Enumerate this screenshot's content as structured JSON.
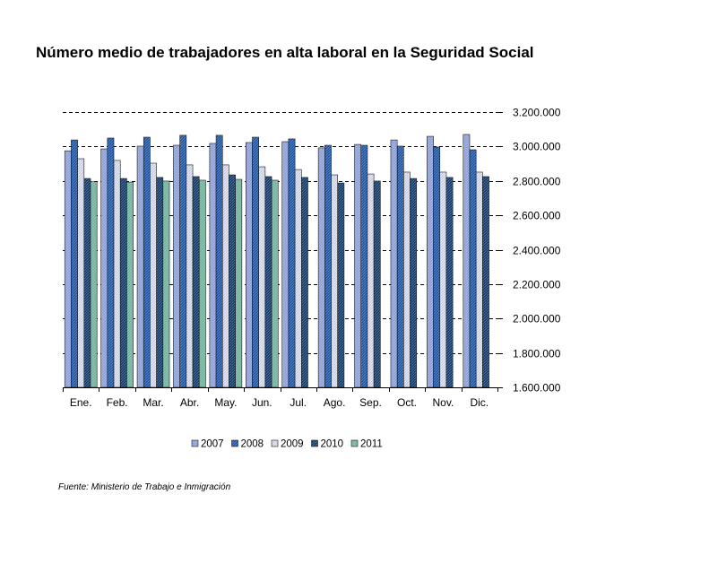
{
  "chart_data": {
    "type": "bar",
    "title": "Número medio de trabajadores en alta laboral en la Seguridad Social",
    "categories": [
      "Ene.",
      "Feb.",
      "Mar.",
      "Abr.",
      "May.",
      "Jun.",
      "Jul.",
      "Ago.",
      "Sep.",
      "Oct.",
      "Nov.",
      "Dic."
    ],
    "series": [
      {
        "name": "2007",
        "color": "#8c9fd6",
        "values": [
          2975000,
          2986000,
          3002000,
          3007000,
          3018000,
          3023000,
          3028000,
          2992000,
          3012000,
          3038000,
          3059000,
          3070000
        ]
      },
      {
        "name": "2008",
        "color": "#1d56a5",
        "values": [
          3038000,
          3049000,
          3054000,
          3065000,
          3065000,
          3054000,
          3044000,
          3007000,
          3007000,
          3002000,
          2997000,
          2981000
        ]
      },
      {
        "name": "2009",
        "color": "#e4e8f3",
        "values": [
          2929000,
          2919000,
          2903000,
          2893000,
          2893000,
          2882000,
          2866000,
          2835000,
          2840000,
          2851000,
          2851000,
          2851000
        ]
      },
      {
        "name": "2010",
        "color": "#123a6a",
        "values": [
          2814000,
          2814000,
          2820000,
          2825000,
          2835000,
          2825000,
          2820000,
          2788000,
          2799000,
          2814000,
          2820000,
          2825000
        ]
      },
      {
        "name": "2011",
        "color": "#86c6ad",
        "values": [
          2795000,
          2793000,
          2799000,
          2804000,
          2809000,
          2804000,
          null,
          null,
          null,
          null,
          null,
          null
        ]
      }
    ],
    "ylim": [
      1600000,
      3200000
    ],
    "yticks": [
      1600000,
      1800000,
      2000000,
      2200000,
      2400000,
      2600000,
      2800000,
      3000000,
      3200000
    ],
    "ytick_labels": [
      "1.600.000",
      "1.800.000",
      "2.000.000",
      "2.200.000",
      "2.400.000",
      "2.600.000",
      "2.800.000",
      "3.000.000",
      "3.200.000"
    ],
    "y_axis": "right",
    "grid": true,
    "legend": "bottom"
  },
  "source": "Fuente: Ministerio de Trabajo e Inmigración"
}
